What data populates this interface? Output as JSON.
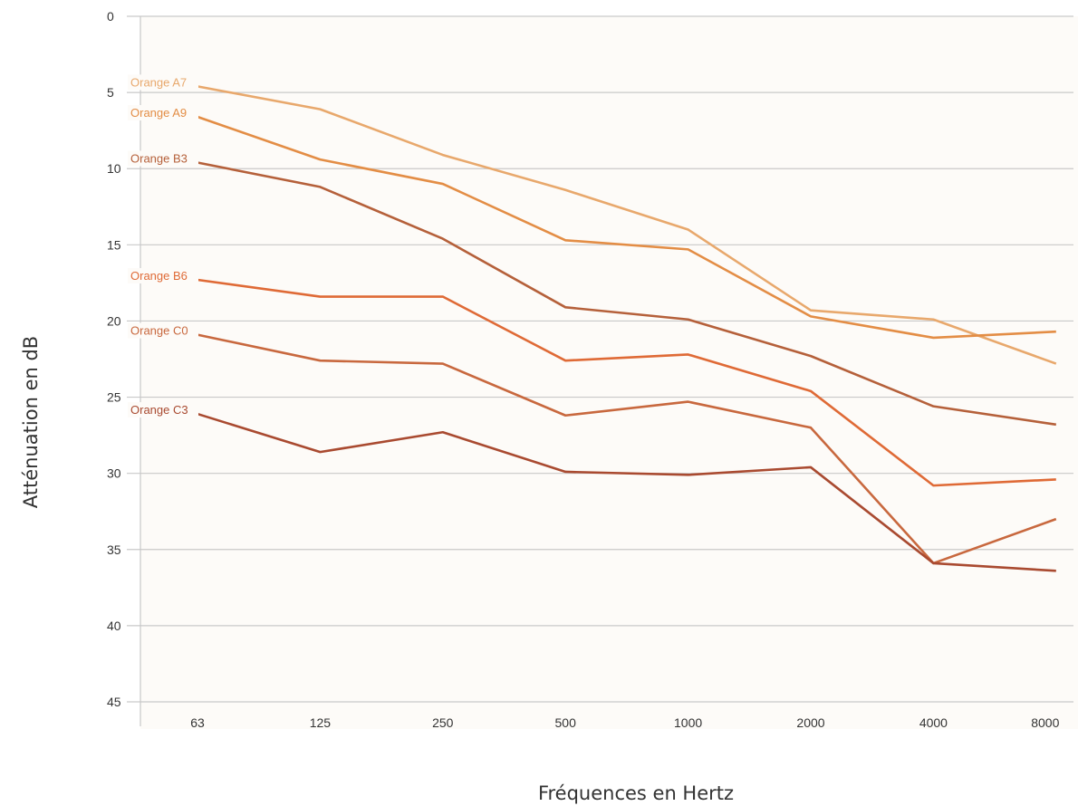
{
  "chart_data": {
    "type": "line",
    "title": "",
    "xlabel": "Fréquences en Hertz",
    "ylabel": "Atténuation en dB",
    "categories": [
      "63",
      "125",
      "250",
      "500",
      "1000",
      "2000",
      "4000",
      "8000"
    ],
    "y_ticks": [
      0,
      5,
      10,
      15,
      20,
      25,
      30,
      35,
      40,
      45
    ],
    "ylim": [
      0,
      45
    ],
    "y_inverted": true,
    "grid": true,
    "legend": "inline labels at left end of each line",
    "series": [
      {
        "name": "Orange A7",
        "color": "#e8a86c",
        "values": [
          4.6,
          6.1,
          9.1,
          11.4,
          14.0,
          19.3,
          19.9,
          22.8
        ]
      },
      {
        "name": "Orange A9",
        "color": "#e38d45",
        "values": [
          6.6,
          9.4,
          11.0,
          14.7,
          15.3,
          19.7,
          21.1,
          20.7
        ]
      },
      {
        "name": "Orange B3",
        "color": "#b5603a",
        "values": [
          9.6,
          11.2,
          14.6,
          19.1,
          19.9,
          22.3,
          25.6,
          26.8
        ]
      },
      {
        "name": "Orange B6",
        "color": "#df6a36",
        "values": [
          17.3,
          18.4,
          18.4,
          22.6,
          22.2,
          24.6,
          30.8,
          30.4
        ]
      },
      {
        "name": "Orange C0",
        "color": "#c8683e",
        "values": [
          20.9,
          22.6,
          22.8,
          26.2,
          25.3,
          27.0,
          35.9,
          33.0
        ]
      },
      {
        "name": "Orange C3",
        "color": "#a94a30",
        "values": [
          26.1,
          28.6,
          27.3,
          29.9,
          30.1,
          29.6,
          35.9,
          36.4
        ]
      }
    ]
  }
}
